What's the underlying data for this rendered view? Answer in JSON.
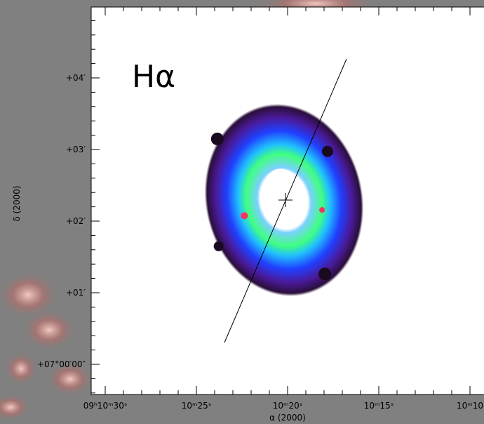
{
  "label": "Hα",
  "x_axis": {
    "title": "α (2000)",
    "ticks": [
      "09ʰ10ᵐ30ˢ",
      "10ᵐ25ˢ",
      "10ᵐ20ˢ",
      "10ᵐ15ˢ",
      "10ᵐ10"
    ]
  },
  "y_axis": {
    "title": "δ (2000)",
    "ticks": [
      "+07°00′00″",
      "+01′",
      "+02′",
      "+03′",
      "+04′"
    ]
  }
}
